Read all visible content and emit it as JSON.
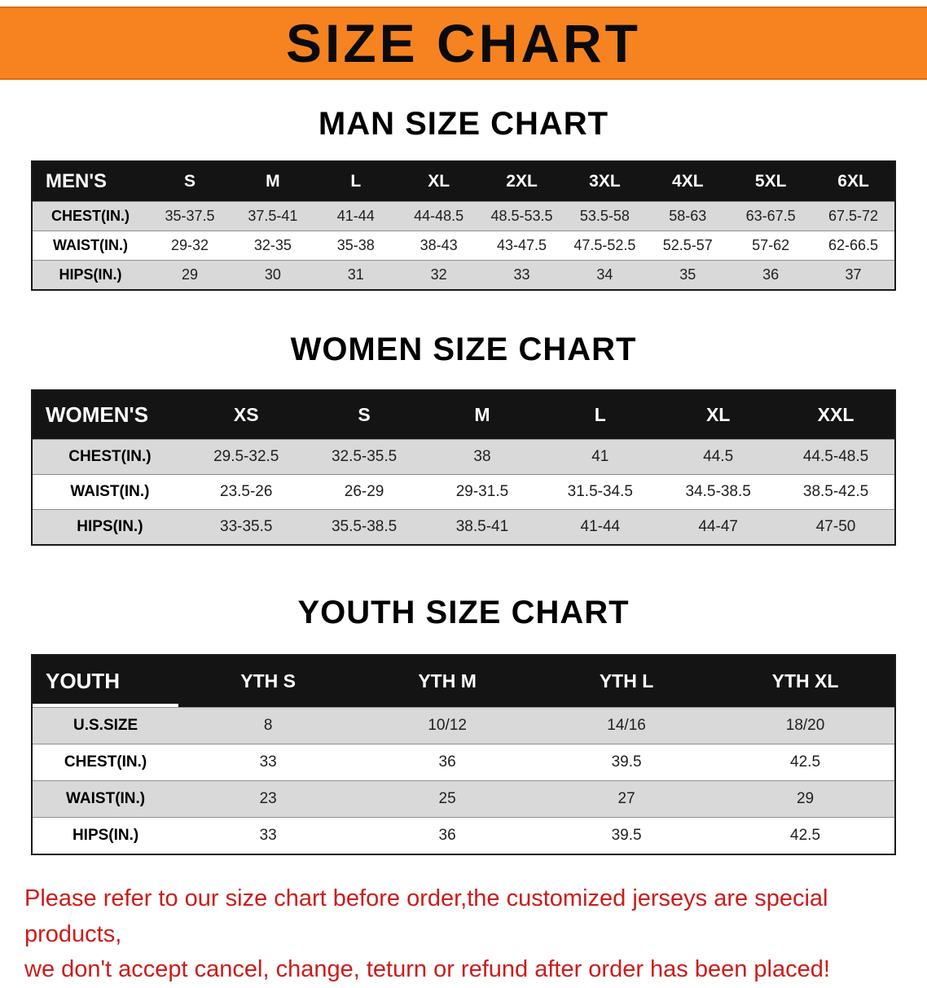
{
  "banner": {
    "title": "SIZE CHART",
    "bg_color": "#f68320"
  },
  "sections": {
    "men": {
      "heading": "MAN SIZE CHART",
      "table": {
        "name": "mens",
        "header": [
          "MEN'S",
          "S",
          "M",
          "L",
          "XL",
          "2XL",
          "3XL",
          "4XL",
          "5XL",
          "6XL"
        ],
        "rows": [
          {
            "label": "CHEST(IN.)",
            "values": [
              "35-37.5",
              "37.5-41",
              "41-44",
              "44-48.5",
              "48.5-53.5",
              "53.5-58",
              "58-63",
              "63-67.5",
              "67.5-72"
            ]
          },
          {
            "label": "WAIST(IN.)",
            "values": [
              "29-32",
              "32-35",
              "35-38",
              "38-43",
              "43-47.5",
              "47.5-52.5",
              "52.5-57",
              "57-62",
              "62-66.5"
            ]
          },
          {
            "label": "HIPS(IN.)",
            "values": [
              "29",
              "30",
              "31",
              "32",
              "33",
              "34",
              "35",
              "36",
              "37"
            ]
          }
        ]
      }
    },
    "women": {
      "heading": "WOMEN SIZE CHART",
      "table": {
        "name": "womens",
        "header": [
          "WOMEN'S",
          "XS",
          "S",
          "M",
          "L",
          "XL",
          "XXL"
        ],
        "rows": [
          {
            "label": "CHEST(IN.)",
            "values": [
              "29.5-32.5",
              "32.5-35.5",
              "38",
              "41",
              "44.5",
              "44.5-48.5"
            ]
          },
          {
            "label": "WAIST(IN.)",
            "values": [
              "23.5-26",
              "26-29",
              "29-31.5",
              "31.5-34.5",
              "34.5-38.5",
              "38.5-42.5"
            ]
          },
          {
            "label": "HIPS(IN.)",
            "values": [
              "33-35.5",
              "35.5-38.5",
              "38.5-41",
              "41-44",
              "44-47",
              "47-50"
            ]
          }
        ]
      }
    },
    "youth": {
      "heading": "YOUTH SIZE CHART",
      "table": {
        "name": "youth",
        "header": [
          "YOUTH",
          "YTH S",
          "YTH M",
          "YTH L",
          "YTH XL"
        ],
        "rows": [
          {
            "label": "U.S.SIZE",
            "values": [
              "8",
              "10/12",
              "14/16",
              "18/20"
            ]
          },
          {
            "label": "CHEST(IN.)",
            "values": [
              "33",
              "36",
              "39.5",
              "42.5"
            ]
          },
          {
            "label": "WAIST(IN.)",
            "values": [
              "23",
              "25",
              "27",
              "29"
            ]
          },
          {
            "label": "HIPS(IN.)",
            "values": [
              "33",
              "36",
              "39.5",
              "42.5"
            ]
          }
        ]
      }
    }
  },
  "footer": {
    "line1": "Please refer to our size chart before order,the customized jerseys are special products,",
    "line2": "we don't accept cancel, change, teturn or refund after order has been placed!"
  },
  "colors": {
    "banner_orange": "#f68320",
    "header_black": "#141414",
    "row_gray": "#d9d9d9",
    "note_red": "#d01a1a"
  }
}
